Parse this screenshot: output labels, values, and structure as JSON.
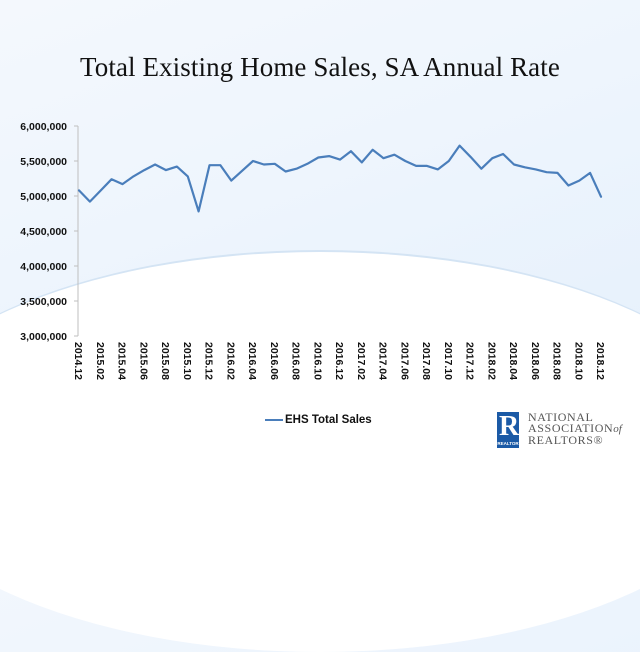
{
  "chart_data": {
    "type": "line",
    "title": "Total Existing Home Sales, SA Annual Rate",
    "xlabel": "",
    "ylabel": "",
    "ylim": [
      3000000,
      6000000
    ],
    "y_ticks": [
      3000000,
      3500000,
      4000000,
      4500000,
      5000000,
      5500000,
      6000000
    ],
    "y_tick_labels": [
      "3,000,000",
      "3,500,000",
      "4,000,000",
      "4,500,000",
      "5,000,000",
      "5,500,000",
      "6,000,000"
    ],
    "grid": false,
    "legend_position": "bottom",
    "x": [
      "2014.12",
      "2015.01",
      "2015.02",
      "2015.03",
      "2015.04",
      "2015.05",
      "2015.06",
      "2015.07",
      "2015.08",
      "2015.09",
      "2015.10",
      "2015.11",
      "2015.12",
      "2016.01",
      "2016.02",
      "2016.03",
      "2016.04",
      "2016.05",
      "2016.06",
      "2016.07",
      "2016.08",
      "2016.09",
      "2016.10",
      "2016.11",
      "2016.12",
      "2017.01",
      "2017.02",
      "2017.03",
      "2017.04",
      "2017.05",
      "2017.06",
      "2017.07",
      "2017.08",
      "2017.09",
      "2017.10",
      "2017.11",
      "2017.12",
      "2018.01",
      "2018.02",
      "2018.03",
      "2018.04",
      "2018.05",
      "2018.06",
      "2018.07",
      "2018.08",
      "2018.09",
      "2018.10",
      "2018.11",
      "2018.12"
    ],
    "x_tick_labels": [
      "2014.12",
      "2015.02",
      "2015.04",
      "2015.06",
      "2015.08",
      "2015.10",
      "2015.12",
      "2016.02",
      "2016.04",
      "2016.06",
      "2016.08",
      "2016.10",
      "2016.12",
      "2017.02",
      "2017.04",
      "2017.06",
      "2017.08",
      "2017.10",
      "2017.12",
      "2018.02",
      "2018.04",
      "2018.06",
      "2018.08",
      "2018.10",
      "2018.12"
    ],
    "series": [
      {
        "name": "EHS Total Sales",
        "color": "#4a7ebb",
        "values": [
          5080000,
          4920000,
          5080000,
          5240000,
          5170000,
          5280000,
          5370000,
          5450000,
          5370000,
          5420000,
          5280000,
          4780000,
          5440000,
          5440000,
          5220000,
          5360000,
          5500000,
          5450000,
          5460000,
          5350000,
          5390000,
          5460000,
          5550000,
          5570000,
          5520000,
          5640000,
          5480000,
          5660000,
          5540000,
          5590000,
          5500000,
          5430000,
          5430000,
          5380000,
          5500000,
          5720000,
          5560000,
          5390000,
          5540000,
          5600000,
          5450000,
          5410000,
          5380000,
          5340000,
          5330000,
          5150000,
          5220000,
          5330000,
          4990000
        ]
      }
    ]
  },
  "legend": {
    "label": "EHS Total Sales"
  },
  "logo": {
    "mark_letter": "R",
    "mark_caption": "REALTOR",
    "line1": "NATIONAL",
    "line2": "ASSOCIATION",
    "line2_suffix": "of",
    "line3": "REALTORS®"
  }
}
